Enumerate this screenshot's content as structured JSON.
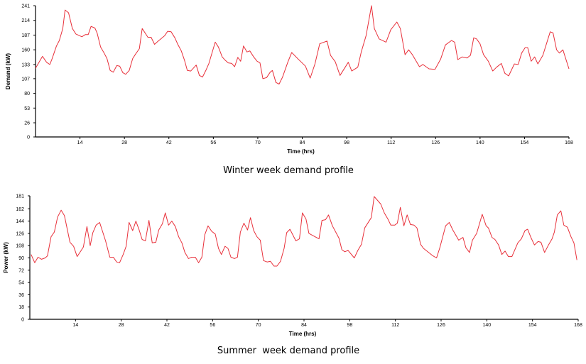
{
  "chart_data": [
    {
      "type": "line",
      "title": "Winter week demand profile",
      "xlabel": "Time (hrs)",
      "ylabel": "Demand (kW)",
      "xlim": [
        0,
        168
      ],
      "ylim": [
        0,
        241
      ],
      "xticks": [
        14,
        28,
        42,
        56,
        70,
        84,
        98,
        112,
        126,
        140,
        154,
        168
      ],
      "yticks": [
        0,
        26,
        53,
        80,
        107,
        133,
        160,
        187,
        214,
        241
      ],
      "grid": false,
      "line_color": "#e8303a",
      "series": [
        {
          "name": "Demand",
          "x": [
            0,
            2.2,
            3.5,
            4.5,
            5.2,
            6.6,
            7.5,
            8.6,
            9.3,
            10.4,
            11.6,
            12.7,
            14.6,
            15.7,
            16.6,
            17.5,
            18.7,
            19.4,
            20.5,
            21.6,
            22.5,
            23.5,
            24.5,
            25.6,
            26.5,
            27.5,
            28.4,
            29.5,
            30.6,
            31.5,
            32.7,
            33.6,
            35.4,
            36.4,
            37.5,
            38.4,
            40.7,
            41.6,
            42.7,
            43.9,
            44.8,
            45.9,
            46.9,
            47.8,
            48.9,
            50.6,
            51.6,
            52.6,
            53.7,
            54.6,
            56.6,
            57.6,
            58.8,
            59.7,
            60.7,
            61.8,
            62.7,
            63.7,
            64.6,
            65.5,
            66.6,
            67.5,
            68.7,
            69.8,
            70.7,
            71.6,
            72.8,
            73.9,
            74.6,
            75.7,
            76.7,
            77.8,
            79.5,
            80.7,
            82.7,
            85,
            86.5,
            88,
            89.5,
            91.8,
            92.9,
            94.4,
            95.9,
            98.5,
            99.6,
            101.5,
            102.6,
            104.1,
            105.8,
            106.7,
            108.2,
            110.4,
            111.9,
            113.8,
            114.9,
            116.4,
            117.5,
            118.7,
            120.9,
            122,
            123.9,
            125.8,
            127.6,
            129.1,
            131,
            132,
            133,
            134.4,
            135.9,
            137,
            138,
            138.9,
            140,
            141.1,
            142.6,
            144,
            145.2,
            146.7,
            147.8,
            149,
            150.8,
            152,
            153.1,
            154.2,
            155,
            156.1,
            157.2,
            158.2,
            159.8,
            162.1,
            163,
            164.1,
            165,
            166.1,
            168
          ],
          "y": [
            126,
            148,
            137,
            133,
            143,
            167,
            177,
            199,
            233,
            228,
            199,
            189,
            184,
            188,
            188,
            203,
            200,
            191,
            165,
            154,
            144,
            122,
            119,
            131,
            130,
            118,
            115,
            122,
            144,
            152,
            162,
            199,
            183,
            183,
            170,
            175,
            186,
            194,
            193,
            182,
            170,
            158,
            141,
            122,
            121,
            132,
            113,
            110,
            123,
            135,
            174,
            165,
            147,
            141,
            136,
            135,
            129,
            146,
            139,
            167,
            156,
            158,
            147,
            139,
            136,
            107,
            109,
            119,
            122,
            100,
            97,
            110,
            138,
            155,
            143,
            130,
            108,
            134,
            171,
            176,
            150,
            138,
            113,
            137,
            121,
            128,
            156,
            186,
            241,
            199,
            180,
            174,
            197,
            211,
            199,
            151,
            160,
            151,
            129,
            133,
            125,
            124,
            143,
            169,
            177,
            174,
            142,
            147,
            145,
            150,
            182,
            180,
            171,
            151,
            139,
            121,
            128,
            135,
            117,
            112,
            134,
            133,
            154,
            164,
            164,
            139,
            147,
            134,
            150,
            193,
            191,
            160,
            154,
            160,
            125
          ]
        }
      ]
    },
    {
      "type": "line",
      "title": "Summer  week demand profile",
      "xlabel": "Time (hrs)",
      "ylabel": "Power (kW)",
      "xlim": [
        0,
        168
      ],
      "ylim": [
        0,
        181
      ],
      "xticks": [
        14,
        28,
        42,
        56,
        70,
        84,
        98,
        112,
        126,
        140,
        154,
        168
      ],
      "yticks": [
        0,
        18,
        36,
        54,
        72,
        90,
        108,
        126,
        144,
        162,
        181
      ],
      "grid": false,
      "line_color": "#e8303a",
      "series": [
        {
          "name": "Power",
          "x": [
            0.4,
            1.5,
            2.5,
            3.6,
            4.7,
            5.4,
            6.5,
            7.5,
            8.5,
            9.6,
            10.6,
            12.3,
            13.4,
            14.5,
            15.6,
            16.4,
            17.5,
            18.5,
            19.3,
            20.3,
            21.4,
            23.2,
            24.5,
            25.6,
            26.6,
            27.5,
            28.6,
            29.5,
            30.4,
            31.5,
            32.5,
            33.5,
            34.4,
            35.4,
            36.5,
            37.5,
            38.6,
            39.5,
            40.6,
            41.5,
            42.5,
            43.5,
            44.6,
            45.6,
            46.6,
            47.5,
            48.6,
            49.6,
            50.7,
            51.7,
            52.7,
            53.6,
            54.6,
            55.7,
            56.8,
            57.8,
            58.7,
            59.8,
            60.7,
            61.6,
            62.7,
            63.6,
            64.5,
            65.6,
            66.7,
            67.6,
            68.6,
            69.6,
            70.6,
            71.6,
            72.7,
            73.7,
            74.8,
            75.7,
            76.8,
            77.9,
            78.7,
            79.7,
            81.5,
            82.6,
            83.5,
            84.6,
            85.5,
            87.4,
            88.6,
            89.5,
            90.6,
            91.5,
            92.7,
            94.7,
            95.6,
            96.5,
            97.5,
            99.4,
            100.5,
            101.6,
            102.6,
            104.6,
            105.5,
            107.5,
            108.6,
            109.7,
            110.6,
            111.8,
            112.6,
            113.5,
            114.6,
            115.6,
            116.6,
            117.7,
            118.6,
            119.7,
            120.6,
            123.5,
            124.6,
            125.6,
            127.4,
            128.5,
            129.6,
            131.4,
            132.7,
            133.6,
            134.7,
            135.6,
            136.9,
            138.6,
            139.8,
            140.5,
            141.6,
            142.5,
            143.6,
            144.6,
            145.6,
            146.6,
            147.7,
            149.5,
            150.6,
            151.7,
            152.5,
            153.5,
            154.6,
            155.7,
            156.6,
            157.7,
            158.9,
            160,
            160.7,
            161.6,
            162.7,
            163.6,
            164.7,
            165.8,
            166.7,
            167.6
          ],
          "y": [
            95,
            83,
            91,
            88,
            90,
            93,
            121,
            128,
            150,
            160,
            152,
            113,
            107,
            92,
            100,
            106,
            136,
            108,
            127,
            138,
            142,
            115,
            91,
            91,
            84,
            83,
            95,
            107,
            142,
            130,
            144,
            131,
            117,
            115,
            145,
            112,
            113,
            131,
            140,
            156,
            138,
            144,
            136,
            121,
            112,
            98,
            89,
            91,
            91,
            83,
            91,
            124,
            137,
            129,
            125,
            104,
            95,
            107,
            104,
            91,
            89,
            91,
            128,
            141,
            131,
            149,
            130,
            121,
            116,
            86,
            84,
            85,
            78,
            78,
            85,
            104,
            127,
            132,
            115,
            118,
            156,
            147,
            126,
            121,
            118,
            145,
            146,
            153,
            137,
            119,
            102,
            99,
            101,
            90,
            101,
            110,
            134,
            149,
            180,
            169,
            156,
            147,
            138,
            138,
            141,
            164,
            137,
            153,
            139,
            138,
            134,
            110,
            104,
            93,
            90,
            105,
            137,
            142,
            131,
            116,
            120,
            105,
            98,
            116,
            126,
            154,
            137,
            134,
            120,
            117,
            109,
            95,
            100,
            92,
            92,
            112,
            118,
            130,
            132,
            120,
            109,
            114,
            113,
            98,
            109,
            118,
            128,
            153,
            159,
            138,
            135,
            121,
            112,
            87
          ]
        }
      ]
    }
  ]
}
